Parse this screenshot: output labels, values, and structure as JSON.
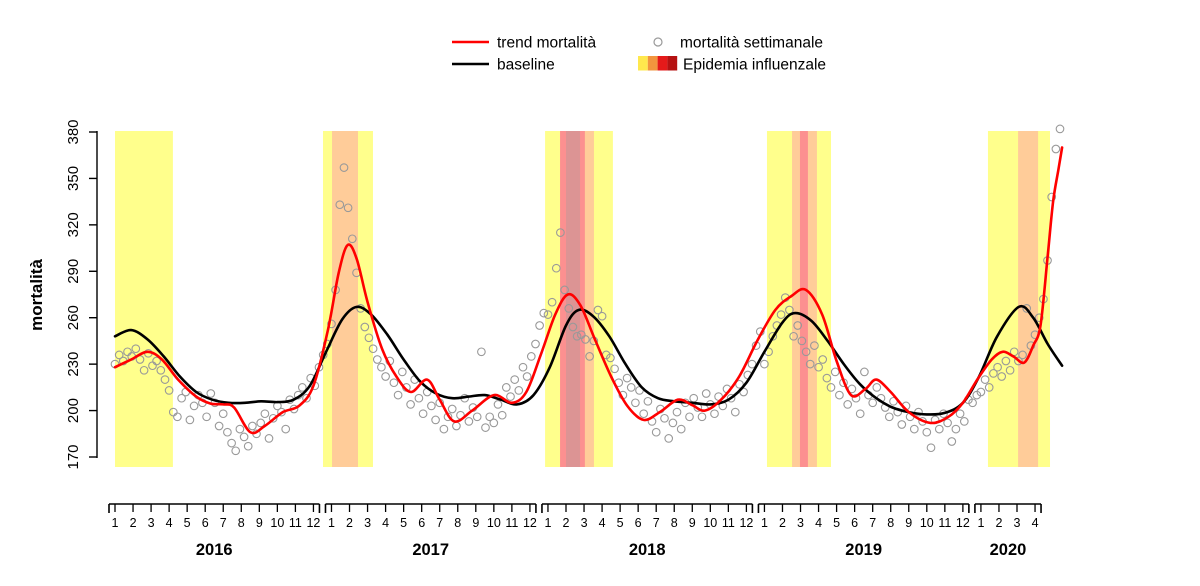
{
  "legend": {
    "trend_label": "trend mortalità",
    "baseline_label": "baseline",
    "weekly_label": "mortalità settimanale",
    "epidemic_label": "Epidemia influenzale",
    "epidemic_swatch_colors": [
      "#FFE84D",
      "#F2953E",
      "#E51A1A",
      "#B51212"
    ]
  },
  "chart_data": {
    "type": "line",
    "title": "",
    "ylabel": "mortalità",
    "ylim": [
      170,
      380
    ],
    "yticks": [
      170,
      200,
      230,
      260,
      290,
      320,
      350,
      380
    ],
    "grid": false,
    "legend_position": "top-center",
    "x_years": [
      {
        "label": "2016",
        "months": [
          1,
          2,
          3,
          4,
          5,
          6,
          7,
          8,
          9,
          10,
          11,
          12
        ]
      },
      {
        "label": "2017",
        "months": [
          1,
          2,
          3,
          4,
          5,
          6,
          7,
          8,
          9,
          10,
          11,
          12
        ]
      },
      {
        "label": "2018",
        "months": [
          1,
          2,
          3,
          4,
          5,
          6,
          7,
          8,
          9,
          10,
          11,
          12
        ]
      },
      {
        "label": "2019",
        "months": [
          1,
          2,
          3,
          4,
          5,
          6,
          7,
          8,
          9,
          10,
          11,
          12
        ]
      },
      {
        "label": "2020",
        "months": [
          1,
          2,
          3,
          4
        ]
      }
    ],
    "colors": {
      "trend": "#FF0000",
      "baseline": "#000000",
      "weekly_point": "#999999",
      "hatch": "#1A1AFF",
      "band_yellow": "#FFFF8C",
      "band_orange": "#FFCC99",
      "band_red": "#FC9090",
      "band_darkred": "#DC9494"
    },
    "series": {
      "trend": {
        "name": "trend mortalità",
        "points": [
          [
            0,
            228
          ],
          [
            0.9,
            233
          ],
          [
            1.8,
            238
          ],
          [
            2.6,
            233
          ],
          [
            3.5,
            220
          ],
          [
            4.5,
            209
          ],
          [
            5.3,
            204.5
          ],
          [
            6.0,
            204
          ],
          [
            6.6,
            202
          ],
          [
            7.5,
            186
          ],
          [
            8.3,
            190
          ],
          [
            9.3,
            199
          ],
          [
            10.2,
            203
          ],
          [
            11.0,
            216
          ],
          [
            11.8,
            252
          ],
          [
            12.4,
            289
          ],
          [
            12.9,
            307
          ],
          [
            13.4,
            298
          ],
          [
            14.0,
            270
          ],
          [
            14.8,
            240
          ],
          [
            15.6,
            222
          ],
          [
            16.4,
            212
          ],
          [
            17.3,
            220
          ],
          [
            18.0,
            207
          ],
          [
            18.8,
            193
          ],
          [
            19.8,
            200
          ],
          [
            21.0,
            210
          ],
          [
            22.0,
            205
          ],
          [
            22.8,
            212
          ],
          [
            23.6,
            236
          ],
          [
            24.4,
            262
          ],
          [
            25.1,
            275
          ],
          [
            25.8,
            268
          ],
          [
            26.6,
            246
          ],
          [
            27.5,
            222
          ],
          [
            28.4,
            203
          ],
          [
            29.3,
            194
          ],
          [
            30.2,
            199
          ],
          [
            31.2,
            207
          ],
          [
            32.0,
            203.5
          ],
          [
            32.7,
            200
          ],
          [
            33.6,
            207
          ],
          [
            34.6,
            222
          ],
          [
            35.6,
            245
          ],
          [
            36.6,
            265
          ],
          [
            37.5,
            274
          ],
          [
            38.3,
            278
          ],
          [
            39.2,
            262
          ],
          [
            40.0,
            232
          ],
          [
            40.8,
            210
          ],
          [
            41.6,
            214
          ],
          [
            42.2,
            220
          ],
          [
            43.0,
            212
          ],
          [
            44.0,
            199
          ],
          [
            45.2,
            192
          ],
          [
            46.2,
            196
          ],
          [
            47.0,
            205
          ],
          [
            47.8,
            220
          ],
          [
            48.6,
            233
          ],
          [
            49.2,
            238
          ],
          [
            49.8,
            235
          ],
          [
            50.4,
            231
          ],
          [
            50.9,
            242
          ],
          [
            51.3,
            255
          ],
          [
            51.7,
            300
          ],
          [
            52.0,
            335
          ],
          [
            52.3,
            356
          ],
          [
            52.5,
            370
          ]
        ]
      },
      "baseline": {
        "name": "baseline",
        "points": [
          [
            0,
            248
          ],
          [
            0.9,
            252
          ],
          [
            1.8,
            246
          ],
          [
            2.7,
            235
          ],
          [
            3.6,
            222
          ],
          [
            4.5,
            212
          ],
          [
            5.4,
            207
          ],
          [
            6.3,
            205
          ],
          [
            7.2,
            205
          ],
          [
            8.1,
            206
          ],
          [
            9.0,
            205.5
          ],
          [
            9.9,
            207
          ],
          [
            10.8,
            216
          ],
          [
            11.7,
            238
          ],
          [
            12.6,
            259
          ],
          [
            13.4,
            267
          ],
          [
            14.2,
            262
          ],
          [
            15.1,
            249
          ],
          [
            16.0,
            233
          ],
          [
            16.9,
            219
          ],
          [
            17.8,
            211
          ],
          [
            18.7,
            208
          ],
          [
            19.6,
            209
          ],
          [
            20.5,
            210
          ],
          [
            21.4,
            207
          ],
          [
            22.3,
            204
          ],
          [
            23.2,
            210
          ],
          [
            24.1,
            228
          ],
          [
            25.0,
            255
          ],
          [
            25.7,
            265
          ],
          [
            26.5,
            261
          ],
          [
            27.4,
            248
          ],
          [
            28.3,
            230
          ],
          [
            29.2,
            215
          ],
          [
            30.1,
            208
          ],
          [
            31.0,
            206
          ],
          [
            32.0,
            205
          ],
          [
            33.0,
            204
          ],
          [
            34.0,
            207
          ],
          [
            35.0,
            218
          ],
          [
            36.0,
            238
          ],
          [
            37.0,
            257
          ],
          [
            37.7,
            263
          ],
          [
            38.6,
            258
          ],
          [
            39.5,
            245
          ],
          [
            40.4,
            230
          ],
          [
            41.3,
            217
          ],
          [
            42.2,
            208
          ],
          [
            43.1,
            202
          ],
          [
            44.0,
            199
          ],
          [
            45.0,
            197.5
          ],
          [
            46.0,
            198.5
          ],
          [
            47.0,
            205
          ],
          [
            47.9,
            222
          ],
          [
            48.9,
            248
          ],
          [
            50.1,
            267
          ],
          [
            50.9,
            260
          ],
          [
            51.7,
            243
          ],
          [
            52.5,
            229
          ]
        ]
      },
      "weekly_by_year": {
        "2016": [
          230,
          236,
          232,
          238,
          235,
          240,
          233,
          226,
          237,
          229,
          232,
          226,
          220,
          213,
          199,
          196,
          208,
          212,
          194,
          203,
          210,
          205,
          196,
          211,
          205,
          190,
          198,
          186,
          179,
          174,
          188,
          183,
          177,
          190,
          185,
          192,
          198,
          182,
          195,
          203,
          199,
          188,
          207,
          201,
          210,
          215,
          208,
          221,
          216,
          228,
          236,
          243
        ],
        "2017": [
          256,
          278,
          333,
          357,
          331,
          311,
          289,
          266,
          254,
          247,
          240,
          233,
          228,
          222,
          232,
          218,
          210,
          225,
          215,
          204,
          220,
          208,
          198,
          212,
          203,
          194,
          205,
          188,
          196,
          201,
          190,
          197,
          208,
          193,
          202,
          196,
          238,
          189,
          196,
          192,
          204,
          197,
          215,
          209,
          220,
          213,
          228,
          222,
          235,
          243,
          255,
          263
        ],
        "2018": [
          262,
          270,
          292,
          315,
          278,
          266,
          254,
          248,
          249,
          246,
          235,
          245,
          265,
          261,
          236,
          234,
          227,
          218,
          210,
          221,
          215,
          205,
          213,
          198,
          206,
          193,
          186,
          201,
          195,
          182,
          192,
          199,
          188,
          205,
          196,
          208,
          202,
          196,
          211,
          204,
          198,
          209,
          203,
          214,
          208,
          199,
          217,
          212,
          223,
          230,
          242,
          251
        ],
        "2019": [
          230,
          238,
          248,
          255,
          262,
          273,
          265,
          248,
          255,
          245,
          238,
          230,
          242,
          228,
          233,
          221,
          215,
          225,
          210,
          218,
          204,
          214,
          208,
          198,
          225,
          210,
          205,
          215,
          208,
          202,
          196,
          206,
          199,
          191,
          203,
          196,
          188,
          199,
          193,
          186,
          176,
          194,
          188,
          198,
          192,
          180,
          188,
          198,
          193,
          207,
          205,
          210
        ],
        "2020": [
          212,
          220,
          215,
          224,
          228,
          222,
          232,
          226,
          238,
          232,
          236,
          266,
          242,
          249,
          260,
          272,
          297,
          338,
          369,
          382
        ]
      }
    },
    "epidemic_bands": [
      {
        "stripes": [
          {
            "from": 0.0,
            "to": 3.21,
            "color": "band_yellow"
          }
        ]
      },
      {
        "stripes": [
          {
            "from": 11.53,
            "to": 14.3,
            "color": "band_yellow"
          },
          {
            "from": 12.03,
            "to": 13.47,
            "color": "band_orange"
          }
        ]
      },
      {
        "stripes": [
          {
            "from": 23.84,
            "to": 27.6,
            "color": "band_yellow"
          },
          {
            "from": 24.67,
            "to": 26.05,
            "color": "band_red"
          },
          {
            "from": 25.0,
            "to": 25.78,
            "color": "band_darkred"
          },
          {
            "from": 26.05,
            "to": 26.55,
            "color": "band_orange"
          }
        ]
      },
      {
        "stripes": [
          {
            "from": 36.14,
            "to": 39.69,
            "color": "band_yellow"
          },
          {
            "from": 37.53,
            "to": 38.91,
            "color": "band_orange"
          },
          {
            "from": 37.97,
            "to": 38.41,
            "color": "band_red"
          }
        ]
      },
      {
        "stripes": [
          {
            "from": 48.39,
            "to": 51.83,
            "color": "band_yellow"
          },
          {
            "from": 50.06,
            "to": 51.17,
            "color": "band_orange"
          }
        ]
      }
    ],
    "excess_region": {
      "from": 46.9,
      "to": 51.5,
      "between": [
        "baseline",
        "trend"
      ],
      "style": "blue-diagonal-hatch"
    }
  }
}
